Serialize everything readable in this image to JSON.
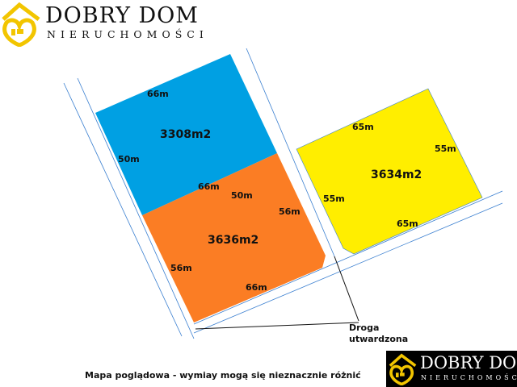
{
  "logo": {
    "title": "DOBRY DOM",
    "subtitle": "NIERUCHOMOŚCI",
    "color": "#f2c500"
  },
  "plots": [
    {
      "area": "3308m2",
      "color": "#00a0e3",
      "sides": [
        "66m",
        "50m",
        "66m",
        "50m"
      ]
    },
    {
      "area": "3636m2",
      "color": "#fb7d24",
      "sides": [
        "56m",
        "56m",
        "66m"
      ]
    },
    {
      "area": "3634m2",
      "color": "#ffee00",
      "sides": [
        "65m",
        "55m",
        "55m",
        "65m"
      ]
    }
  ],
  "road_label": {
    "line1": "Droga",
    "line2": "utwardzona"
  },
  "caption": "Mapa poglądowa - wymiay mogą się nieznacznie różnić",
  "line_color": "#3a7fd0"
}
